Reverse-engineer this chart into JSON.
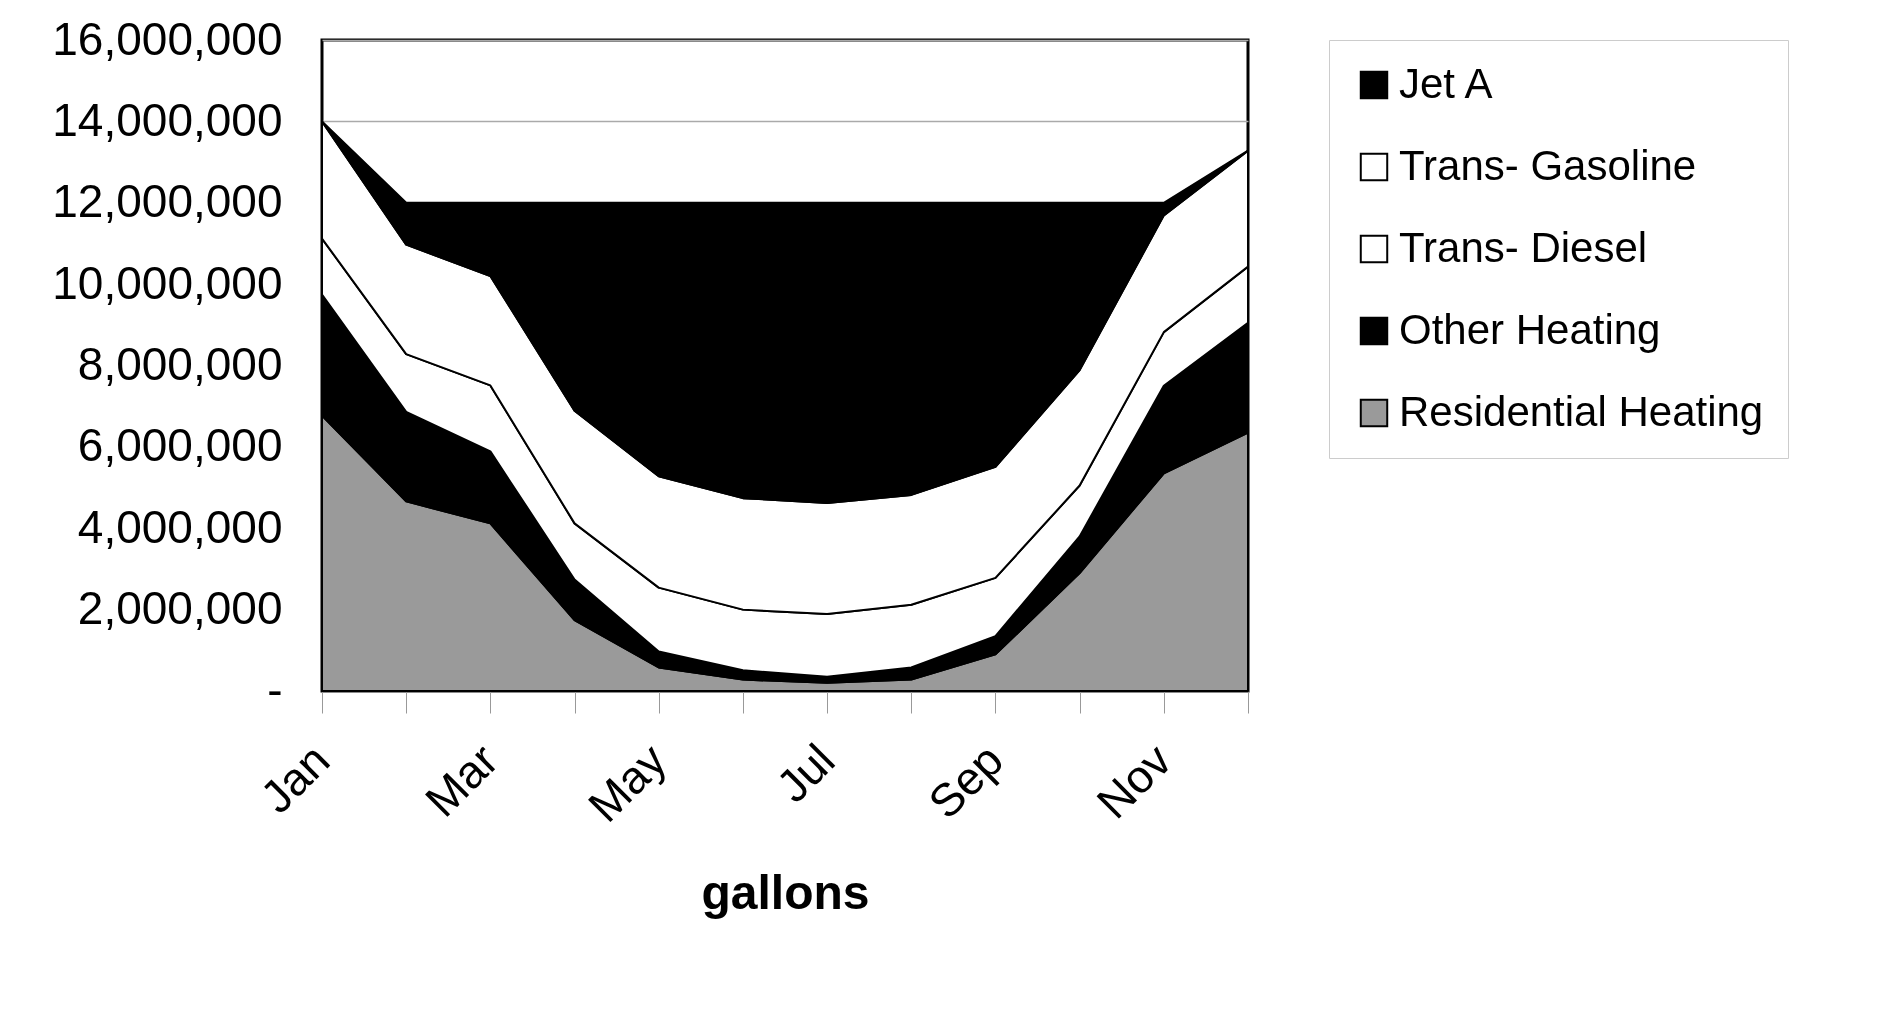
{
  "chart_data": {
    "type": "area",
    "stacked": true,
    "xlabel": "gallons",
    "legend": "right",
    "grid": "y",
    "categories": [
      "Jan",
      null,
      "Mar",
      null,
      "May",
      null,
      "Jul",
      null,
      "Sep",
      null,
      "Nov",
      null
    ],
    "ylim": [
      0,
      16000000
    ],
    "yticks": [
      {
        "value": 0,
        "label": "-"
      },
      {
        "value": 2000000,
        "label": "2,000,000"
      },
      {
        "value": 4000000,
        "label": "4,000,000"
      },
      {
        "value": 6000000,
        "label": "6,000,000"
      },
      {
        "value": 8000000,
        "label": "8,000,000"
      },
      {
        "value": 10000000,
        "label": "10,000,000"
      },
      {
        "value": 12000000,
        "label": "12,000,000"
      },
      {
        "value": 14000000,
        "label": "14,000,000"
      },
      {
        "value": 16000000,
        "label": "16,000,000"
      }
    ],
    "series": [
      {
        "name": "Residential Heating",
        "color": "#9a9a9a",
        "values": [
          6770000,
          4660000,
          4120000,
          1740000,
          580000,
          280000,
          200000,
          280000,
          900000,
          2900000,
          5350000,
          6350000
        ]
      },
      {
        "name": "Other Heating",
        "color": "#000000",
        "values": [
          2970000,
          2200000,
          1770000,
          1000000,
          390000,
          230000,
          150000,
          300000,
          450000,
          900000,
          2150000,
          2700000
        ]
      },
      {
        "name": "Trans- Diesel",
        "color": "#ffffff",
        "values": [
          1380000,
          1420000,
          1620000,
          1380000,
          1570000,
          1490000,
          1540000,
          1540000,
          1430000,
          1250000,
          1320000,
          1380000
        ]
      },
      {
        "name": "Trans- Gasoline",
        "color": "#ffffff",
        "values": [
          2880000,
          2690000,
          2690000,
          2770000,
          2740000,
          2740000,
          2730000,
          2700000,
          2730000,
          2840000,
          2870000,
          2850000
        ]
      },
      {
        "name": "Jet A",
        "color": "#000000",
        "values": [
          0,
          1030000,
          1800000,
          5110000,
          6720000,
          7260000,
          7380000,
          7180000,
          6490000,
          4110000,
          310000,
          0
        ]
      }
    ]
  }
}
